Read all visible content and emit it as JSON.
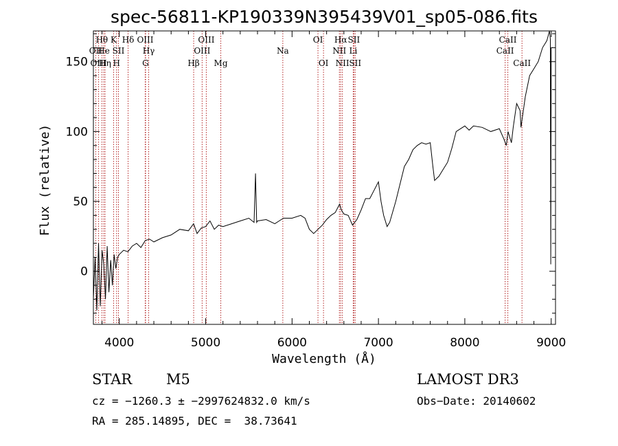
{
  "chart_data": {
    "type": "line",
    "title": "spec-56811-KP190339N395439V01_sp05-086.fits",
    "xlabel": "Wavelength (Å)",
    "ylabel": "Flux (relative)",
    "xlim": [
      3700,
      9050
    ],
    "ylim": [
      -38,
      172
    ],
    "xticks": [
      4000,
      5000,
      6000,
      7000,
      8000,
      9000
    ],
    "yticks": [
      0,
      50,
      100,
      150
    ],
    "grid": false,
    "series": [
      {
        "name": "flux",
        "x": [
          3700,
          3720,
          3740,
          3760,
          3780,
          3800,
          3820,
          3840,
          3860,
          3880,
          3900,
          3920,
          3940,
          3960,
          3980,
          4000,
          4050,
          4100,
          4150,
          4200,
          4250,
          4300,
          4350,
          4400,
          4500,
          4600,
          4700,
          4800,
          4860,
          4900,
          4950,
          5000,
          5050,
          5100,
          5150,
          5200,
          5300,
          5400,
          5500,
          5560,
          5577,
          5590,
          5600,
          5700,
          5800,
          5850,
          5900,
          6000,
          6100,
          6150,
          6200,
          6250,
          6300,
          6350,
          6400,
          6450,
          6500,
          6550,
          6570,
          6600,
          6650,
          6700,
          6750,
          6800,
          6850,
          6900,
          6950,
          7000,
          7030,
          7060,
          7100,
          7130,
          7200,
          7300,
          7350,
          7400,
          7450,
          7500,
          7550,
          7600,
          7630,
          7650,
          7700,
          7800,
          7850,
          7900,
          8000,
          8050,
          8100,
          8200,
          8300,
          8400,
          8450,
          8480,
          8500,
          8540,
          8560,
          8600,
          8640,
          8650,
          8700,
          8750,
          8800,
          8850,
          8900,
          8950,
          8980,
          8990,
          8995,
          9000,
          9020
        ],
        "values": [
          -20,
          10,
          -28,
          20,
          -25,
          15,
          5,
          -20,
          18,
          -15,
          8,
          -10,
          12,
          2,
          10,
          12,
          15,
          14,
          18,
          20,
          17,
          22,
          23,
          21,
          24,
          26,
          30,
          29,
          34,
          27,
          31,
          32,
          36,
          30,
          33,
          32,
          34,
          36,
          38,
          35,
          70,
          35,
          36,
          37,
          34,
          36,
          38,
          38,
          40,
          38,
          30,
          27,
          30,
          33,
          37,
          40,
          42,
          48,
          44,
          41,
          40,
          33,
          37,
          44,
          52,
          52,
          58,
          64,
          50,
          40,
          32,
          35,
          50,
          75,
          80,
          87,
          90,
          92,
          91,
          92,
          75,
          65,
          68,
          78,
          88,
          100,
          104,
          101,
          104,
          103,
          100,
          102,
          95,
          90,
          100,
          92,
          103,
          120,
          115,
          103,
          125,
          140,
          145,
          150,
          160,
          165,
          172,
          166,
          5,
          160,
          160
        ]
      }
    ],
    "spectral_lines": [
      {
        "label": "Hθ",
        "x": 3798,
        "row": 1
      },
      {
        "label": "OII",
        "x": 3727,
        "row": 2
      },
      {
        "label": "OIII",
        "x": 3760,
        "row": 3
      },
      {
        "label": "He",
        "x": 3820,
        "row": 2
      },
      {
        "label": "Hη",
        "x": 3835,
        "row": 3
      },
      {
        "label": "K",
        "x": 3934,
        "row": 1
      },
      {
        "label": "H",
        "x": 3968,
        "row": 3
      },
      {
        "label": "SII",
        "x": 3990,
        "row": 2
      },
      {
        "label": "Hδ",
        "x": 4102,
        "row": 1
      },
      {
        "label": "OIII",
        "x": 4300,
        "row": 1
      },
      {
        "label": "Hγ",
        "x": 4340,
        "row": 2
      },
      {
        "label": "G",
        "x": 4304,
        "row": 3
      },
      {
        "label": "Hβ",
        "x": 4861,
        "row": 3
      },
      {
        "label": "OIII",
        "x": 4959,
        "row": 2
      },
      {
        "label": "OIII",
        "x": 5007,
        "row": 1
      },
      {
        "label": "Mg",
        "x": 5175,
        "row": 3
      },
      {
        "label": "Na",
        "x": 5893,
        "row": 2
      },
      {
        "label": "OI",
        "x": 6300,
        "row": 1
      },
      {
        "label": "OI",
        "x": 6364,
        "row": 3
      },
      {
        "label": "Hα",
        "x": 6563,
        "row": 1
      },
      {
        "label": "NII",
        "x": 6548,
        "row": 2
      },
      {
        "label": "NII",
        "x": 6583,
        "row": 3
      },
      {
        "label": "SII",
        "x": 6716,
        "row": 1
      },
      {
        "label": "Li",
        "x": 6708,
        "row": 2
      },
      {
        "label": "SII",
        "x": 6731,
        "row": 3
      },
      {
        "label": "CaII",
        "x": 8498,
        "row": 1
      },
      {
        "label": "CaII",
        "x": 8467,
        "row": 2
      },
      {
        "label": "CaII",
        "x": 8662,
        "row": 3
      }
    ]
  },
  "info": {
    "object_class": "STAR",
    "subclass": "M5",
    "survey": "LAMOST DR3",
    "cz_line": "cz = −1260.3 ± −2997624832.0 km/s",
    "obs_date": "Obs−Date: 20140602",
    "coords": "RA = 285.14895, DEC =  38.73641"
  },
  "colors": {
    "line_marker": "#b22222",
    "spectrum": "#000000"
  }
}
